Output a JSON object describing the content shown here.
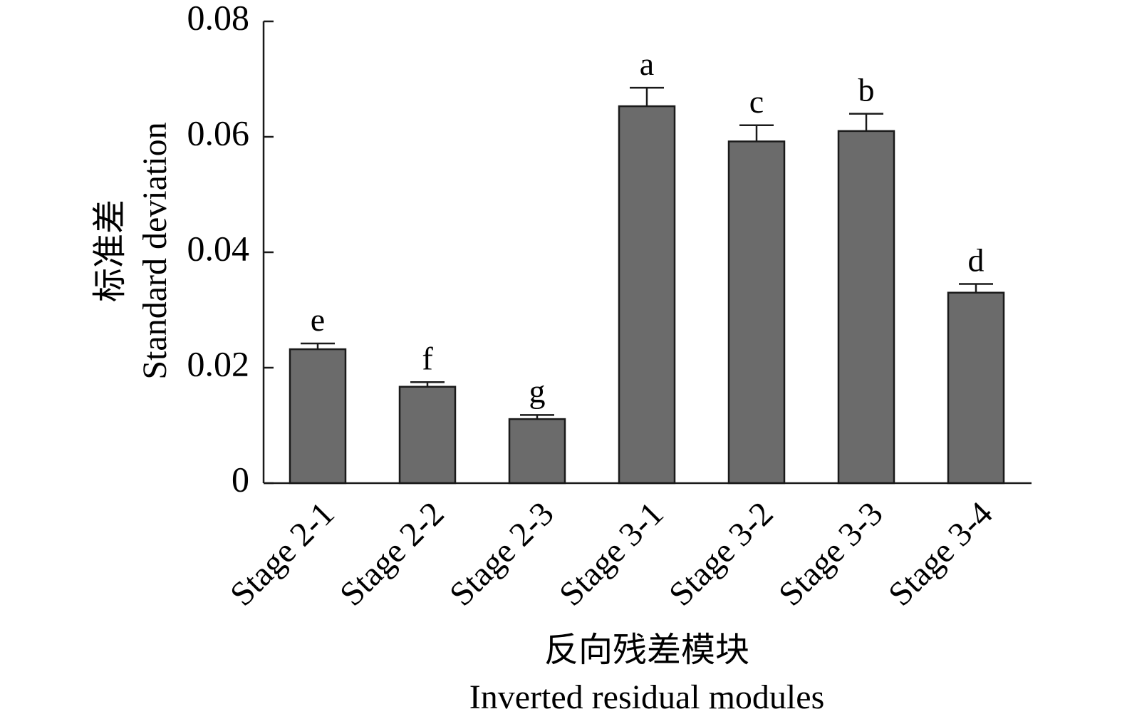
{
  "chart_data": {
    "type": "bar",
    "categories": [
      "Stage 2-1",
      "Stage 2-2",
      "Stage 2-3",
      "Stage 3-1",
      "Stage 3-2",
      "Stage 3-3",
      "Stage 3-4"
    ],
    "values": [
      0.0232,
      0.0167,
      0.0111,
      0.0653,
      0.0592,
      0.061,
      0.033
    ],
    "errors": [
      0.001,
      0.0008,
      0.0007,
      0.0032,
      0.0028,
      0.003,
      0.0015
    ],
    "significance_labels": [
      "e",
      "f",
      "g",
      "a",
      "c",
      "b",
      "d"
    ],
    "xlabel_cn": "反向残差模块",
    "xlabel_en": "Inverted residual modules",
    "ylabel_cn": "标准差",
    "ylabel_en": "Standard deviation",
    "ylim": [
      0,
      0.08
    ],
    "yticks": [
      0,
      0.02,
      0.04,
      0.06,
      0.08
    ],
    "ytick_labels": [
      "0",
      "0.02",
      "0.04",
      "0.06",
      "0.08"
    ],
    "grid": false,
    "bar_color": "#6b6b6b"
  }
}
